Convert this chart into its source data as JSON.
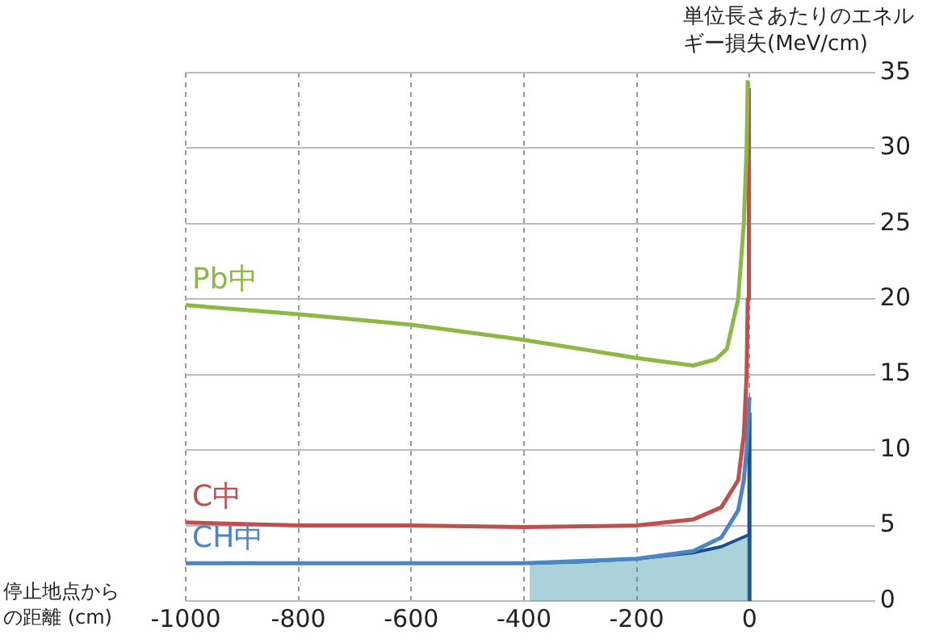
{
  "chart_data": {
    "type": "line",
    "xlabel": "停止地点からの距離 (cm)",
    "ylabel": "単位長さあたりのエネルギー損失(MeV/cm)",
    "xlim": [
      -1000,
      200
    ],
    "xticks": [
      -1000,
      -800,
      -600,
      -400,
      -200,
      0
    ],
    "ylim": [
      0,
      35
    ],
    "yticks": [
      0,
      5,
      10,
      15,
      20,
      25,
      30,
      35
    ],
    "grid": true,
    "legend": false,
    "marker": "none",
    "series": [
      {
        "name": "Pb中",
        "color": "#8db843",
        "x": [
          -1000,
          -800,
          -600,
          -400,
          -200,
          -100,
          -60,
          -40,
          -20,
          -10,
          -5,
          -3
        ],
        "values": [
          19.6,
          19.0,
          18.3,
          17.3,
          16.1,
          15.6,
          16.0,
          16.7,
          20,
          25,
          30,
          34.5
        ]
      },
      {
        "name": "C中",
        "color": "#c0504d",
        "x": [
          -1000,
          -800,
          -600,
          -400,
          -200,
          -100,
          -50,
          -20,
          -10,
          -5,
          -3,
          -1
        ],
        "values": [
          5.2,
          5.0,
          5.0,
          4.9,
          5.0,
          5.4,
          6.2,
          8,
          11,
          15,
          20,
          34
        ]
      },
      {
        "name": "CH中",
        "color": "#4a86c5",
        "x": [
          -1000,
          -800,
          -600,
          -400,
          -200,
          -100,
          -50,
          -20,
          -10,
          -5,
          -2,
          0
        ],
        "values": [
          2.5,
          2.5,
          2.5,
          2.5,
          2.8,
          3.3,
          4.2,
          6,
          8,
          10,
          12,
          13.5
        ]
      },
      {
        "type": "area",
        "color": "#2e8fa0",
        "x": [
          -390,
          -300,
          -200,
          -100,
          -50,
          0
        ],
        "values": [
          2.5,
          2.6,
          2.8,
          3.2,
          3.6,
          4.4
        ]
      },
      {
        "color": "#1f4e8c",
        "x": [
          0,
          0
        ],
        "values": [
          0,
          12.5
        ]
      }
    ]
  }
}
